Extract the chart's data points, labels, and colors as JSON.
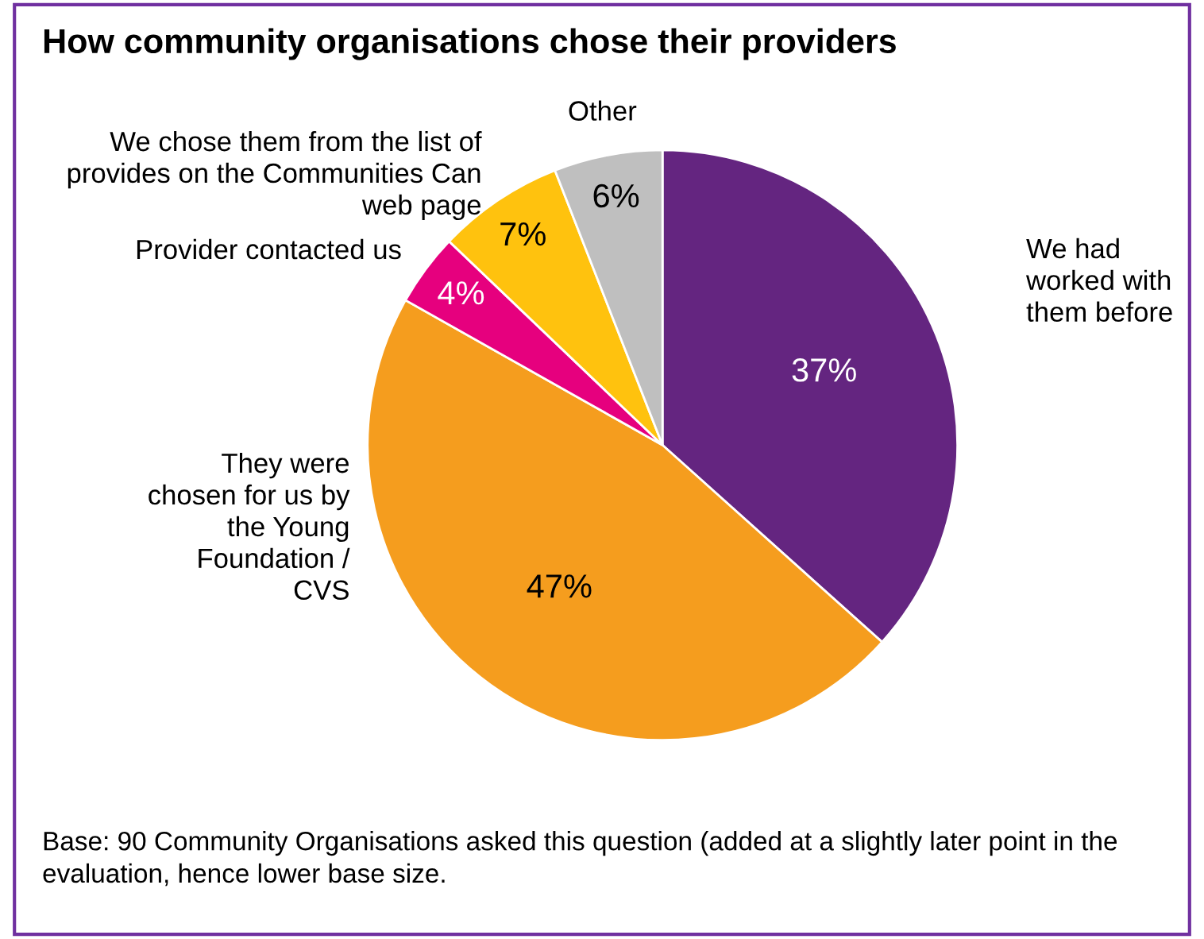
{
  "chart_data": {
    "type": "pie",
    "title": "How community organisations chose their providers",
    "categories": [
      "We had\nworked with\nthem before",
      "They were\nchosen for us by\nthe Young\nFoundation /\nCVS",
      "Provider contacted us",
      "We chose them from the list of\nprovides on the Communities Can\nweb page",
      "Other"
    ],
    "values": [
      37,
      47,
      4,
      7,
      6
    ],
    "colors": [
      "#642580",
      "#f59d1e",
      "#e6007e",
      "#ffc20e",
      "#bfbfbf"
    ],
    "value_labels": [
      "37%",
      "47%",
      "4%",
      "7%",
      "6%"
    ],
    "legend": false,
    "annotations": [
      "Base: 90 Community Organisations asked this question (added at a slightly later point in the evaluation, hence lower base size."
    ]
  }
}
